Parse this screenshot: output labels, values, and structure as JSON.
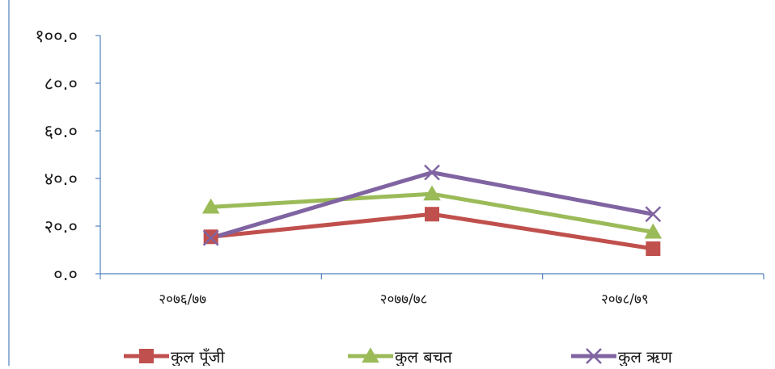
{
  "chart_data": {
    "type": "line",
    "title": "",
    "categories": [
      "२०७६/७७",
      "२०७७/७८",
      "२०७८/७९"
    ],
    "ylim": [
      0,
      100
    ],
    "yticks": [
      "०.०",
      "२०.०",
      "४०.०",
      "६०.०",
      "८०.०",
      "१००.०"
    ],
    "grid": false,
    "legend_position": "bottom",
    "series": [
      {
        "name": "कुल पूँजी",
        "values": [
          15.5,
          25.0,
          10.5
        ],
        "color": "#c0504d",
        "marker": "square"
      },
      {
        "name": "कुल बचत",
        "values": [
          28.0,
          33.5,
          17.5
        ],
        "color": "#9bbb59",
        "marker": "triangle"
      },
      {
        "name": "कुल ऋण",
        "values": [
          15.0,
          42.5,
          25.0
        ],
        "color": "#8064a2",
        "marker": "x"
      }
    ],
    "axis_color": "#4f81bd"
  }
}
